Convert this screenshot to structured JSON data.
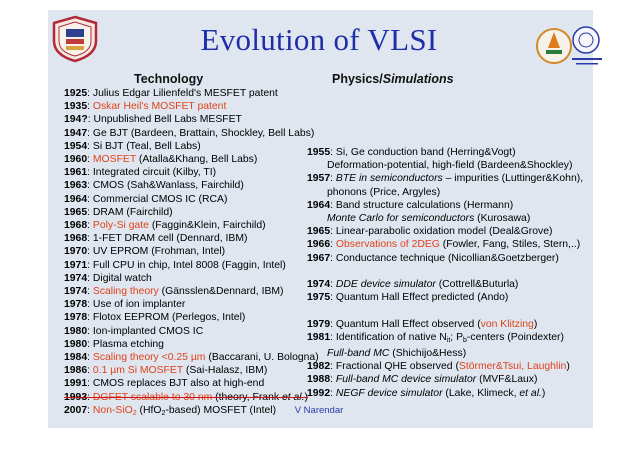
{
  "title": "Evolution of VLSI",
  "footer": "V Narendar",
  "headers": {
    "technology": "Technology",
    "physics_prefix": "Physics/",
    "physics_italic": "Simulations"
  },
  "technology": [
    {
      "year": "1925",
      "text": ": Julius Edgar Lilienfeld's MESFET patent"
    },
    {
      "year": "1935",
      "text": ": ",
      "red": "Oskar Heil's MOSFET patent"
    },
    {
      "year": "194?",
      "text": ": Unpublished Bell Labs MESFET"
    },
    {
      "year": "1947",
      "text": ": Ge BJT (Bardeen, Brattain, Shockley, Bell Labs)"
    },
    {
      "year": "1954",
      "text": ": Si BJT (Teal, Bell Labs)"
    },
    {
      "year": "1960",
      "text": ": ",
      "red": "MOSFET",
      "after": " (Atalla&Khang, Bell Labs)"
    },
    {
      "year": "1961",
      "text": ": Integrated circuit (Kilby, TI)"
    },
    {
      "year": "1963",
      "text": ": CMOS (Sah&Wanlass, Fairchild)"
    },
    {
      "year": "1964",
      "text": ": Commercial CMOS IC (RCA)"
    },
    {
      "year": "1965",
      "text": ": DRAM (Fairchild)"
    },
    {
      "year": "1968",
      "text": ": ",
      "red": "Poly-Si gate",
      "after": " (Faggin&Klein, Fairchild)"
    },
    {
      "year": "1968",
      "text": ": 1-FET DRAM cell (Dennard, IBM)"
    },
    {
      "year": "1970",
      "text": ": UV EPROM (Frohman, Intel)"
    },
    {
      "year": "1971",
      "text": ": Full CPU in chip, Intel 8008 (Faggin, Intel)"
    },
    {
      "year": "1974",
      "text": ": Digital watch"
    },
    {
      "year": "1974",
      "text": ": ",
      "red": "Scaling theory",
      "after": " (Gänsslen&Dennard, IBM)"
    },
    {
      "year": "1978",
      "text": ": Use of ion implanter"
    },
    {
      "year": "1978",
      "text": ": Flotox EEPROM (Perlegos, Intel)"
    },
    {
      "year": "1980",
      "text": ": Ion-implanted CMOS IC"
    },
    {
      "year": "1980",
      "text": ": Plasma etching"
    },
    {
      "year": "1984",
      "text": ": ",
      "red": "Scaling theory <0.25 µm",
      "after": " (Baccarani, U. Bologna)"
    },
    {
      "year": "1986",
      "text": ": ",
      "red": "0.1 µm Si MOSFET",
      "after": " (Sai-Halasz, IBM)"
    },
    {
      "year": "1991",
      "text": ": CMOS replaces BJT also at high-end"
    },
    {
      "year": "1993",
      "text": ": ",
      "red": "DGFET scalable to 30 nm",
      "after": " (theory, Frank ",
      "italic": "et al.",
      "close": ")"
    },
    {
      "year": "2007",
      "text": ": ",
      "red": "Non-SiO",
      "after": " (HfO",
      "close": "-based) MOSFET (Intel)"
    }
  ],
  "physics": [
    {
      "year": "1955",
      "text": ": Si, Ge conduction band (Herring&Vogt)"
    },
    {
      "year": "",
      "text": "Deformation-potential, high-field (Bardeen&Shockley)"
    },
    {
      "year": "1957",
      "text": ": ",
      "italic": "BTE in semiconductors",
      "after": " – impurities (Luttinger&Kohn),"
    },
    {
      "year": "",
      "text": "phonons (Price, Argyles)"
    },
    {
      "year": "1964",
      "text": ": Band structure calculations (Hermann)"
    },
    {
      "year": "",
      "italic": "Monte Carlo for semiconductors",
      "after": " (Kurosawa)"
    },
    {
      "year": "1965",
      "text": ": Linear-parabolic oxidation model (Deal&Grove)"
    },
    {
      "year": "1966",
      "text": ": ",
      "red": "Observations of 2DEG",
      "after": " (Fowler, Fang, Stiles, Stern,..)"
    },
    {
      "year": "1967",
      "text": ": Conductance technique (Nicollian&Goetzberger)"
    },
    {
      "year": "1974",
      "text": ": ",
      "italic": "DDE device simulator",
      "after": " (Cottrell&Buturla)"
    },
    {
      "year": "1975",
      "text": ": Quantum Hall Effect predicted (Ando)"
    },
    {
      "year": "1979",
      "text": ": Quantum Hall Effect observed (",
      "red": "von Klitzing",
      "after": ")"
    },
    {
      "year": "1981",
      "text": ": Identification of native N",
      "sub": "it",
      "after": "; P",
      "sub2": "b",
      "close": "-centers (Poindexter)"
    },
    {
      "year": "",
      "italic": "Full-band MC",
      "after": " (Shichijo&Hess)"
    },
    {
      "year": "1982",
      "text": ": Fractional QHE observed (",
      "red": "Störmer&Tsui, Laughlin",
      "after": ")"
    },
    {
      "year": "1988",
      "text": ": ",
      "italic": "Full-band MC device simulator",
      "after": " (MVF&Laux)"
    },
    {
      "year": "1992",
      "text": ": ",
      "italic": "NEGF device simulator",
      "after": " (Lake, Klimeck, ",
      "italic2": "et al.",
      "close": ")"
    }
  ],
  "colors": {
    "title": "#1f2da8",
    "accent_red": "#e0421a",
    "panel": "#dfe6ef"
  }
}
